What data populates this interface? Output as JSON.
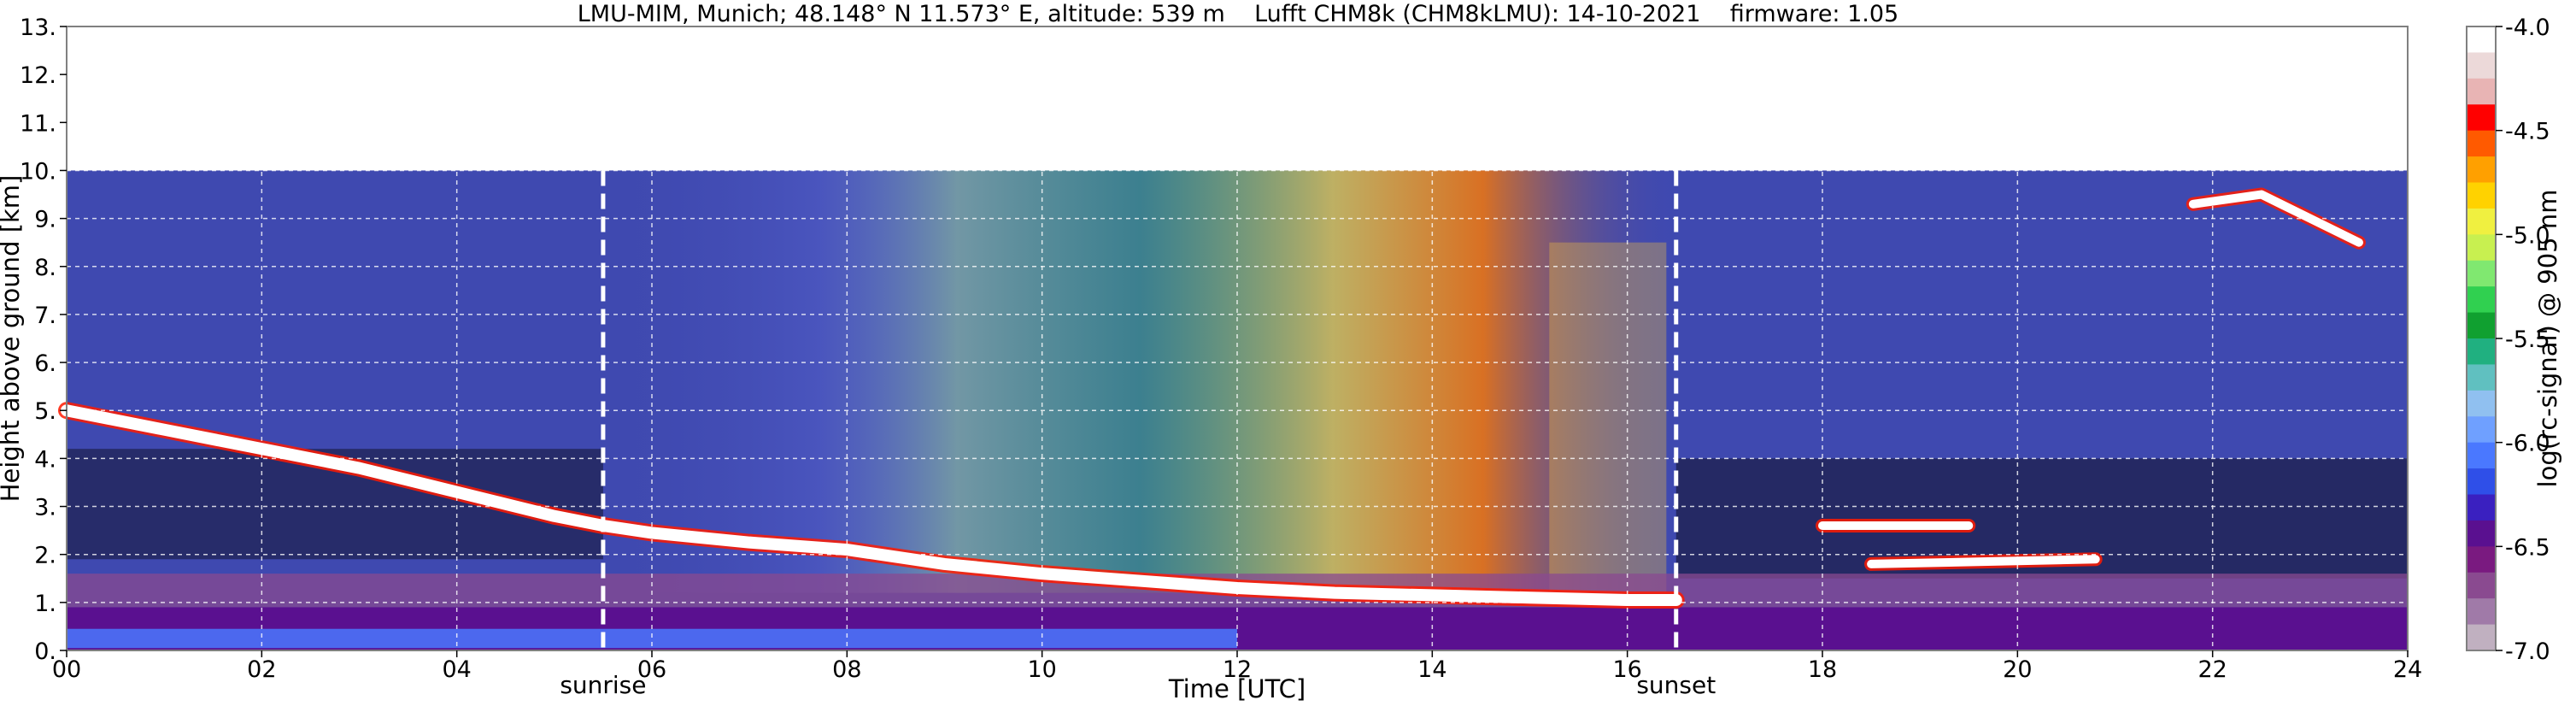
{
  "chart_data": {
    "type": "heatmap",
    "title": "LMU-MIM, Munich; 48.148° N 11.573° E, altitude: 539 m    Lufft CHM8k (CHM8kLMU): 14-10-2021    firmware: 1.05",
    "xlabel": "Time [UTC]",
    "ylabel": "Height above ground [km]",
    "xlim": [
      0,
      24
    ],
    "ylim": [
      0,
      13
    ],
    "x_ticks": [
      "00",
      "02",
      "04",
      "06",
      "08",
      "10",
      "12",
      "14",
      "16",
      "18",
      "20",
      "22",
      "24"
    ],
    "y_ticks": [
      "0.",
      "1.",
      "2.",
      "3.",
      "4.",
      "5.",
      "6.",
      "7.",
      "8.",
      "9.",
      "10.",
      "11.",
      "12.",
      "13."
    ],
    "data_top_km": 10,
    "grid": true,
    "colorbar": {
      "label": "log(rc-signal) @ 905 nm",
      "range": [
        -7.0,
        -4.0
      ],
      "ticks": [
        "-4.0",
        "-4.5",
        "-5.0",
        "-5.5",
        "-6.0",
        "-6.5",
        "-7.0"
      ],
      "colors": [
        "#ffffff",
        "#ecd9d9",
        "#e8b4b4",
        "#ff0000",
        "#ff5a00",
        "#ffa000",
        "#ffd200",
        "#f0f040",
        "#c8f050",
        "#80e870",
        "#30d050",
        "#10a030",
        "#20b080",
        "#60c0c0",
        "#90c0f0",
        "#6fa0ff",
        "#4a78ff",
        "#2f4fe8",
        "#3a20c0",
        "#5a1090",
        "#7a1a80",
        "#8a4a90",
        "#a07aa8",
        "#c0b0c0"
      ]
    },
    "annotations": [
      {
        "text": "sunrise",
        "x": 5.5
      },
      {
        "text": "sunset",
        "x": 16.5
      }
    ],
    "features": [
      {
        "name": "descending boundary layer top",
        "x": [
          0.0,
          1.0,
          2.0,
          3.0,
          4.0,
          5.0,
          5.5,
          6.0,
          7.0,
          8.0,
          9.0,
          10.0,
          11.0,
          12.0,
          13.0,
          14.0,
          15.0,
          16.0,
          16.5
        ],
        "y": [
          5.0,
          4.6,
          4.2,
          3.8,
          3.3,
          2.8,
          2.6,
          2.45,
          2.25,
          2.1,
          1.8,
          1.6,
          1.45,
          1.3,
          1.2,
          1.15,
          1.1,
          1.05,
          1.05
        ]
      },
      {
        "name": "cloud layer 2.6 km",
        "x": [
          18.0,
          19.5
        ],
        "y": [
          2.6,
          2.6
        ]
      },
      {
        "name": "cloud layer 1.8 km",
        "x": [
          18.5,
          20.8
        ],
        "y": [
          1.8,
          1.9
        ]
      },
      {
        "name": "high clouds",
        "x": [
          21.8,
          22.5,
          23.5
        ],
        "y": [
          9.3,
          9.5,
          8.5
        ]
      }
    ]
  }
}
